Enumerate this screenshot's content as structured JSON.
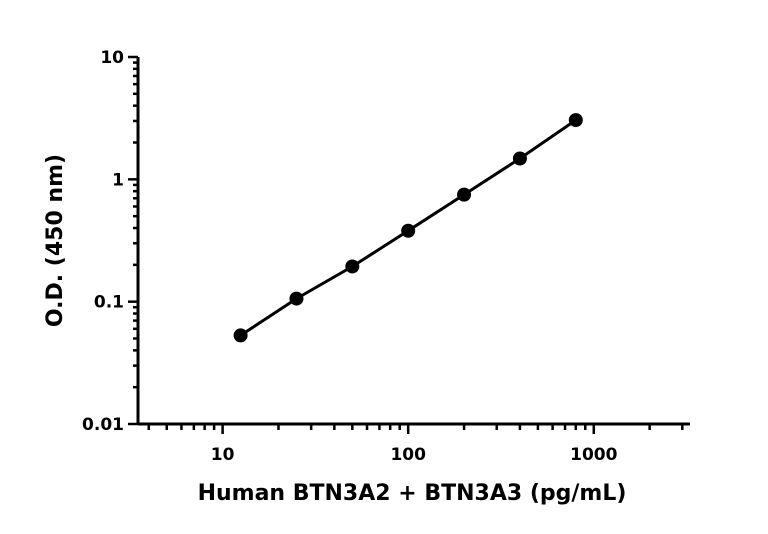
{
  "chart_data": {
    "type": "scatter",
    "xscale": "log",
    "yscale": "log",
    "xlabel": "Human BTN3A2 + BTN3A3 (pg/mL)",
    "ylabel": "O.D. (450 nm)",
    "xlim": [
      3.5,
      3300
    ],
    "ylim": [
      0.01,
      10
    ],
    "x_major_ticks": [
      10,
      100,
      1000
    ],
    "x_tick_labels": [
      "10",
      "100",
      "1000"
    ],
    "y_major_ticks": [
      0.01,
      0.1,
      1,
      10
    ],
    "y_tick_labels": [
      "0.01",
      "0.1",
      "1",
      "10"
    ],
    "grid": false,
    "legend": "none",
    "series": [
      {
        "x": [
          12.5,
          25,
          50,
          100,
          200,
          400,
          800
        ],
        "y": [
          0.053,
          0.106,
          0.194,
          0.38,
          0.75,
          1.48,
          3.05
        ],
        "marker": "circle",
        "line": true
      }
    ],
    "color": "#000000"
  }
}
